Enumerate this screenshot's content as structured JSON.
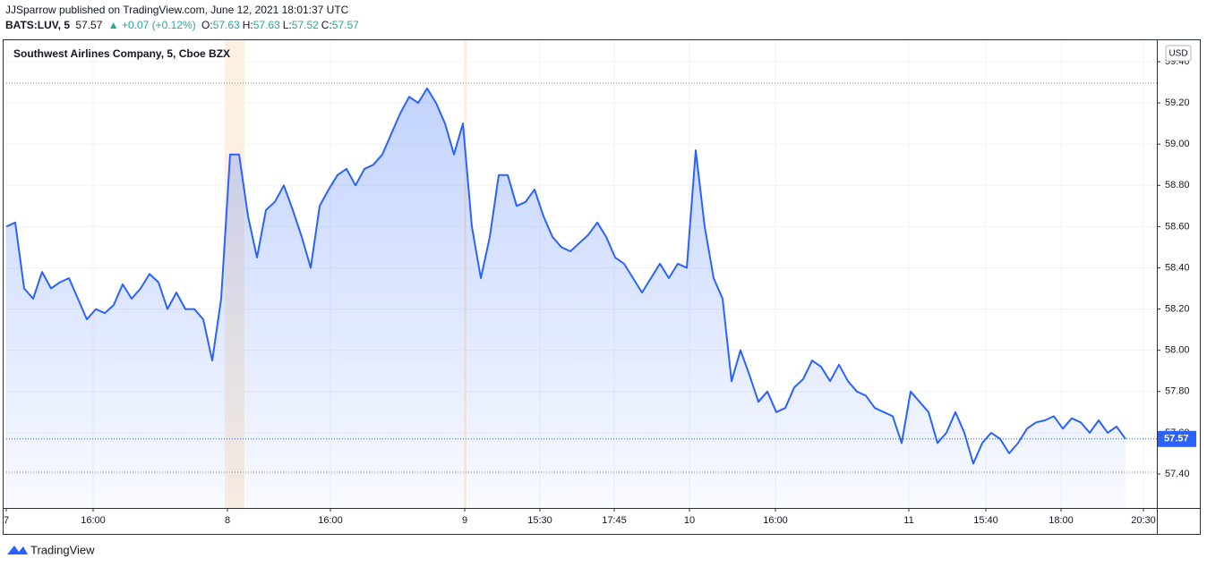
{
  "header": {
    "publisher": "JJSparrow published on TradingView.com, June 12, 2021 18:01:37 UTC",
    "symbol": "BATS:LUV, 5",
    "price": "57.57",
    "change": "▲ +0.07 (+0.12%)",
    "ohlc": [
      {
        "label": "O:",
        "value": "57.63"
      },
      {
        "label": "H:",
        "value": "57.63"
      },
      {
        "label": "L:",
        "value": "57.52"
      },
      {
        "label": "C:",
        "value": "57.57"
      }
    ]
  },
  "chart_data": {
    "type": "area",
    "currency": "USD",
    "last_price": 57.57,
    "grid": true,
    "series": [
      {
        "name": "Southwest Airlines Company, 5, Cboe BZX",
        "color": "#2962ff",
        "values": [
          58.6,
          58.62,
          58.3,
          58.25,
          58.38,
          58.3,
          58.33,
          58.35,
          58.25,
          58.15,
          58.2,
          58.18,
          58.22,
          58.32,
          58.25,
          58.3,
          58.37,
          58.33,
          58.2,
          58.28,
          58.2,
          58.2,
          58.15,
          57.95,
          58.25,
          58.95,
          58.95,
          58.65,
          58.45,
          58.68,
          58.72,
          58.8,
          58.68,
          58.55,
          58.4,
          58.7,
          58.78,
          58.85,
          58.88,
          58.8,
          58.88,
          58.9,
          58.95,
          59.05,
          59.15,
          59.23,
          59.2,
          59.27,
          59.2,
          59.1,
          58.95,
          59.1,
          58.6,
          58.35,
          58.55,
          58.85,
          58.85,
          58.7,
          58.72,
          58.78,
          58.65,
          58.55,
          58.5,
          58.48,
          58.52,
          58.56,
          58.62,
          58.55,
          58.45,
          58.42,
          58.35,
          58.28,
          58.35,
          58.42,
          58.35,
          58.42,
          58.4,
          58.97,
          58.6,
          58.35,
          58.25,
          57.85,
          58.0,
          57.88,
          57.75,
          57.8,
          57.7,
          57.72,
          57.82,
          57.86,
          57.95,
          57.92,
          57.85,
          57.93,
          57.85,
          57.8,
          57.78,
          57.72,
          57.7,
          57.68,
          57.55,
          57.8,
          57.75,
          57.7,
          57.55,
          57.6,
          57.7,
          57.6,
          57.45,
          57.55,
          57.6,
          57.57,
          57.5,
          57.55,
          57.62,
          57.65,
          57.66,
          57.68,
          57.62,
          57.67,
          57.65,
          57.6,
          57.66,
          57.6,
          57.63,
          57.57
        ]
      }
    ],
    "xlim": [
      0,
      128.5
    ],
    "xticks": [
      {
        "value": 0,
        "label": "7"
      },
      {
        "value": 9.7,
        "label": "16:00"
      },
      {
        "value": 24.7,
        "label": "8"
      },
      {
        "value": 36.2,
        "label": "16:00"
      },
      {
        "value": 51.2,
        "label": "9"
      },
      {
        "value": 59.6,
        "label": "15:30"
      },
      {
        "value": 67.9,
        "label": "17:45"
      },
      {
        "value": 76.3,
        "label": "10"
      },
      {
        "value": 85.9,
        "label": "16:00"
      },
      {
        "value": 100.8,
        "label": "11"
      },
      {
        "value": 109.4,
        "label": "15:40"
      },
      {
        "value": 117.8,
        "label": "18:00"
      },
      {
        "value": 127,
        "label": "20:30"
      }
    ],
    "ylim": [
      57.235,
      59.504
    ],
    "yticks": [
      {
        "value": 57.4,
        "label": "57.40"
      },
      {
        "value": 57.6,
        "label": "57.60"
      },
      {
        "value": 57.8,
        "label": "57.80"
      },
      {
        "value": 58.0,
        "label": "58.00"
      },
      {
        "value": 58.2,
        "label": "58.20"
      },
      {
        "value": 58.4,
        "label": "58.40"
      },
      {
        "value": 58.6,
        "label": "58.60"
      },
      {
        "value": 58.8,
        "label": "58.80"
      },
      {
        "value": 59.0,
        "label": "59.00"
      },
      {
        "value": 59.2,
        "label": "59.20"
      },
      {
        "value": 59.4,
        "label": "59.40"
      }
    ],
    "footer": "TradingView"
  }
}
